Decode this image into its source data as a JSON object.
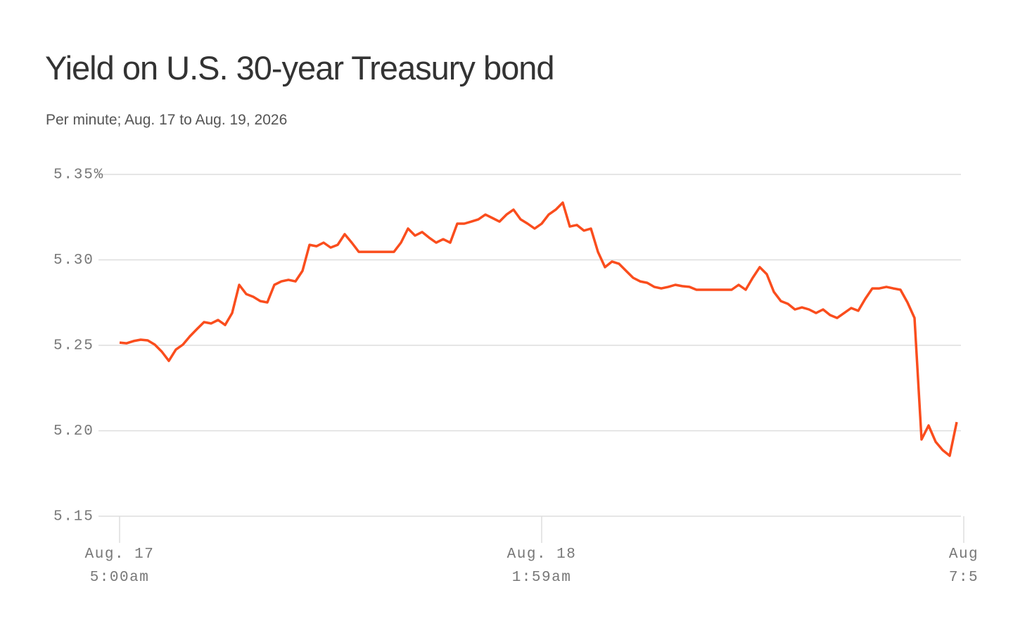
{
  "chart_data": {
    "type": "line",
    "title": "Yield on U.S. 30-year Treasury bond",
    "subtitle": "Per minute; Aug. 17 to Aug. 19, 2026",
    "color": "#fa4d1d",
    "grid": true,
    "ylim": [
      5.15,
      5.35
    ],
    "yticks": [
      {
        "value": 5.35,
        "label": "5.35%"
      },
      {
        "value": 5.3,
        "label": "5.30"
      },
      5.25,
      {
        "value": 5.2,
        "label": "5.20"
      },
      5.15
    ],
    "xlim": [
      -3,
      119.6
    ],
    "xticks": [
      {
        "value": 0,
        "label": "Aug. 17\n5:00am"
      },
      {
        "value": 60,
        "label": "Aug. 18\n1:59am"
      },
      {
        "value": 120,
        "label": "Aug\n7:5"
      }
    ],
    "values": [
      5.2516,
      5.2512,
      5.2525,
      5.2533,
      5.2529,
      5.2504,
      5.2463,
      5.2409,
      5.2475,
      5.2504,
      5.2553,
      5.2595,
      5.2636,
      5.2628,
      5.2648,
      5.2619,
      5.2689,
      5.2854,
      5.28,
      5.2784,
      5.2759,
      5.2751,
      5.2854,
      5.2874,
      5.2883,
      5.2874,
      5.2936,
      5.3088,
      5.308,
      5.3101,
      5.3072,
      5.3088,
      5.315,
      5.3101,
      5.3047,
      5.3047,
      5.3047,
      5.3047,
      5.3047,
      5.3047,
      5.3101,
      5.3183,
      5.3142,
      5.3163,
      5.313,
      5.3101,
      5.3121,
      5.3101,
      5.3212,
      5.3212,
      5.3224,
      5.3237,
      5.3265,
      5.3245,
      5.3224,
      5.3265,
      5.3294,
      5.3237,
      5.3212,
      5.3183,
      5.3212,
      5.3265,
      5.3294,
      5.3335,
      5.3195,
      5.3204,
      5.3171,
      5.3183,
      5.3047,
      5.2957,
      5.299,
      5.2977,
      5.2936,
      5.2895,
      5.2874,
      5.2866,
      5.2842,
      5.2833,
      5.2842,
      5.2854,
      5.2846,
      5.2842,
      5.2825,
      5.2825,
      5.2825,
      5.2825,
      5.2825,
      5.2825,
      5.2854,
      5.2825,
      5.2895,
      5.2957,
      5.2916,
      5.2813,
      5.2759,
      5.2743,
      5.271,
      5.2722,
      5.271,
      5.2689,
      5.271,
      5.2677,
      5.266,
      5.2689,
      5.2718,
      5.2702,
      5.2772,
      5.2833,
      5.2833,
      5.2842,
      5.2833,
      5.2825,
      5.2751,
      5.266,
      5.1949,
      5.2031,
      5.1936,
      5.1887,
      5.1854,
      5.2051
    ]
  }
}
